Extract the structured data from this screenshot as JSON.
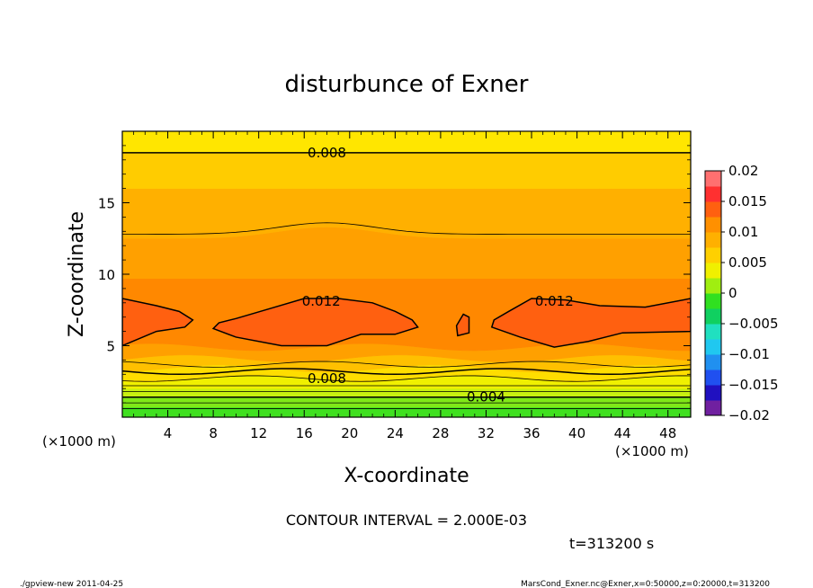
{
  "chart_data": {
    "type": "contour",
    "title": "disturbunce of Exner",
    "xlabel": "X-coordinate",
    "ylabel": "Z-coordinate",
    "x_unit": "(×1000 m)",
    "y_unit": "(×1000 m)",
    "xlim": [
      0,
      50
    ],
    "ylim": [
      0,
      20
    ],
    "x_ticks": [
      4,
      8,
      12,
      16,
      20,
      24,
      28,
      32,
      36,
      40,
      44,
      48
    ],
    "y_ticks": [
      5,
      10,
      15
    ],
    "contour_interval_text": "CONTOUR INTERVAL = 2.000E-03",
    "time_text": "t=313200 s",
    "contour_labels": [
      {
        "text": "0.008",
        "x": 18,
        "z": 18.5
      },
      {
        "text": "0.012",
        "x": 17.5,
        "z": 8.1
      },
      {
        "text": "0.012",
        "x": 38,
        "z": 8.1
      },
      {
        "text": "0.008",
        "x": 18,
        "z": 2.7
      },
      {
        "text": "0.004",
        "x": 32,
        "z": 1.4
      }
    ],
    "colorbar": {
      "min": -0.02,
      "max": 0.02,
      "tick_labels": [
        "0.02",
        "0.015",
        "0.01",
        "0.005",
        "0",
        "−0.005",
        "−0.01",
        "−0.015",
        "−0.02"
      ],
      "colors": [
        "#7020a0",
        "#2010c0",
        "#2050f0",
        "#2090f0",
        "#20c8f0",
        "#20e0c0",
        "#10d060",
        "#30e020",
        "#a0ee10",
        "#f0f000",
        "#ffd000",
        "#ffb000",
        "#ff9000",
        "#ff6010",
        "#ff3030",
        "#ff7070"
      ]
    },
    "fill_levels": [
      {
        "z": 0.0,
        "color": "#40e020"
      },
      {
        "z": 0.7,
        "color": "#80e818"
      },
      {
        "z": 1.4,
        "color": "#c8f010"
      },
      {
        "z": 2.0,
        "color": "#f0f000"
      },
      {
        "z": 2.7,
        "color": "#ffdd00"
      },
      {
        "z": 3.4,
        "color": "#ffc000"
      },
      {
        "z": 4.1,
        "color": "#ffa000"
      },
      {
        "z": 4.9,
        "color": "#ff8800"
      },
      {
        "z": 9.7,
        "color": "#ffa000"
      },
      {
        "z": 12.5,
        "color": "#ffb000"
      },
      {
        "z": 16.0,
        "color": "#ffcc00"
      },
      {
        "z": 18.5,
        "color": "#ffe600"
      }
    ]
  },
  "footer": {
    "left": "./gpview-new   2011-04-25",
    "right": "MarsCond_Exner.nc@Exner,x=0:50000,z=0:20000,t=313200"
  }
}
